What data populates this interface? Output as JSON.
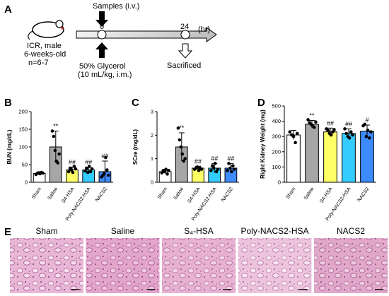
{
  "panel_a": {
    "label": "A",
    "subject": [
      "ICR, male",
      "6-weeks-old",
      "n=6-7"
    ],
    "samples": "Samples (i.v.)",
    "t0": "0",
    "t24": "24",
    "unit": "(hr)",
    "treatment": [
      "50% Glycerol",
      "(10 mL/kg, i.m.)"
    ],
    "endpoint": "Sacrificed"
  },
  "chart_data": [
    {
      "type": "bar",
      "panel": "B",
      "ylabel": "BUN (mg/dL)",
      "categories": [
        "Sham",
        "Saline",
        "S4-HSA",
        "Poly-NACS2-HSA",
        "NACS2"
      ],
      "colors": [
        "#ffffff",
        "#a6a6a6",
        "#ffff66",
        "#33ccff",
        "#3d8bff"
      ],
      "values": [
        25,
        100,
        35,
        35,
        30
      ],
      "errors": [
        3,
        45,
        8,
        8,
        30
      ],
      "points": [
        [
          22,
          25,
          27,
          24,
          28,
          26
        ],
        [
          145,
          130,
          90,
          60,
          55,
          80
        ],
        [
          30,
          40,
          35,
          28,
          45,
          38
        ],
        [
          32,
          40,
          28,
          45,
          30,
          38
        ],
        [
          15,
          20,
          25,
          70,
          35,
          20
        ]
      ],
      "annotations": [
        null,
        "**",
        "##",
        "##",
        "##"
      ],
      "ylim": [
        0,
        200
      ],
      "yticks": [
        0,
        50,
        100,
        150,
        200
      ]
    },
    {
      "type": "bar",
      "panel": "C",
      "ylabel": "SCre (mg/dL)",
      "categories": [
        "Sham",
        "Saline",
        "S4-HSA",
        "Poly-NACS2-HSA",
        "NACS2"
      ],
      "colors": [
        "#ffffff",
        "#a6a6a6",
        "#ffff66",
        "#33ccff",
        "#3d8bff"
      ],
      "values": [
        0.45,
        1.5,
        0.6,
        0.6,
        0.6
      ],
      "errors": [
        0.08,
        0.6,
        0.08,
        0.2,
        0.2
      ],
      "points": [
        [
          0.4,
          0.5,
          0.45,
          0.55,
          0.35,
          0.5
        ],
        [
          2.3,
          1.8,
          1.5,
          1.2,
          0.9,
          1.0
        ],
        [
          0.55,
          0.6,
          0.65,
          0.5,
          0.6,
          0.55
        ],
        [
          0.5,
          0.7,
          0.6,
          0.8,
          0.45,
          0.55
        ],
        [
          0.5,
          0.8,
          0.6,
          0.45,
          0.7,
          0.55
        ]
      ],
      "annotations": [
        null,
        "**",
        "##",
        "##",
        "##"
      ],
      "ylim": [
        0,
        3
      ],
      "yticks": [
        0,
        1,
        2,
        3
      ]
    },
    {
      "type": "bar",
      "panel": "D",
      "ylabel": "Right Kidney Weight (mg)",
      "categories": [
        "Sham",
        "Saline",
        "S4-HSA",
        "Poly-NACS2-HSA",
        "NACS2"
      ],
      "colors": [
        "#ffffff",
        "#a6a6a6",
        "#ffff66",
        "#33ccff",
        "#3d8bff"
      ],
      "values": [
        310,
        380,
        330,
        320,
        335
      ],
      "errors": [
        30,
        25,
        25,
        30,
        40
      ],
      "points": [
        [
          330,
          310,
          300,
          260,
          320
        ],
        [
          410,
          390,
          380,
          370,
          360,
          395
        ],
        [
          350,
          340,
          320,
          310,
          330,
          345
        ],
        [
          350,
          320,
          300,
          290,
          330,
          310
        ],
        [
          370,
          380,
          300,
          340,
          290,
          330
        ]
      ],
      "annotations": [
        null,
        "**",
        "##",
        "##",
        "#"
      ],
      "ylim": [
        0,
        500
      ],
      "yticks": [
        0,
        100,
        200,
        300,
        400,
        500
      ]
    }
  ],
  "panel_e": {
    "label": "E",
    "titles": [
      "Sham",
      "Saline",
      "S₄-HSA",
      "Poly-NACS2-HSA",
      "NACS2"
    ]
  }
}
